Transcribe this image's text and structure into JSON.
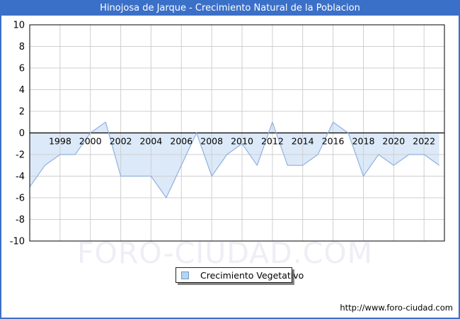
{
  "title": "Hinojosa de Jarque - Crecimiento Natural de la Poblacion",
  "legend": {
    "label": "Crecimiento Vegetativo"
  },
  "watermark": "FORO-CIUDAD.COM",
  "footer_url": "http://www.foro-ciudad.com",
  "colors": {
    "titlebar": "#3B70C8",
    "page_border": "#3B70C8",
    "line": "#90B2DF",
    "fill": "#DCE9F8",
    "grid": "#CFCFCF",
    "zero_line": "#000000",
    "plot_border": "#000000",
    "tick_label": "#000000",
    "watermark": "#EEEEF6",
    "legend_swatch_fill": "#B7D3EE",
    "legend_swatch_border": "#6F9CC9"
  },
  "chart_data": {
    "type": "area",
    "title": "Hinojosa de Jarque - Crecimiento Natural de la Poblacion",
    "x": [
      1996,
      1997,
      1998,
      1999,
      2000,
      2001,
      2002,
      2003,
      2004,
      2005,
      2006,
      2007,
      2008,
      2009,
      2010,
      2011,
      2012,
      2013,
      2014,
      2015,
      2016,
      2017,
      2018,
      2019,
      2020,
      2021,
      2022,
      2023
    ],
    "series": [
      {
        "name": "Crecimiento Vegetativo",
        "values": [
          -5,
          -3,
          -2,
          -2,
          0,
          1,
          -4,
          -4,
          -4,
          -6,
          -3,
          0,
          -4,
          -2,
          -1,
          -3,
          1,
          -3,
          -3,
          -2,
          1,
          0,
          -4,
          -2,
          -3,
          -2,
          -2,
          -3
        ]
      }
    ],
    "ylim": [
      -10,
      10
    ],
    "y_ticks": [
      10,
      8,
      6,
      4,
      2,
      0,
      -2,
      -4,
      -6,
      -8,
      -10
    ],
    "x_tick_years": [
      1998,
      2000,
      2002,
      2004,
      2006,
      2008,
      2010,
      2012,
      2014,
      2016,
      2018,
      2020,
      2022
    ],
    "baseline": 0,
    "grid": true,
    "legend_position": "bottom-center",
    "xlabel": "",
    "ylabel": ""
  }
}
